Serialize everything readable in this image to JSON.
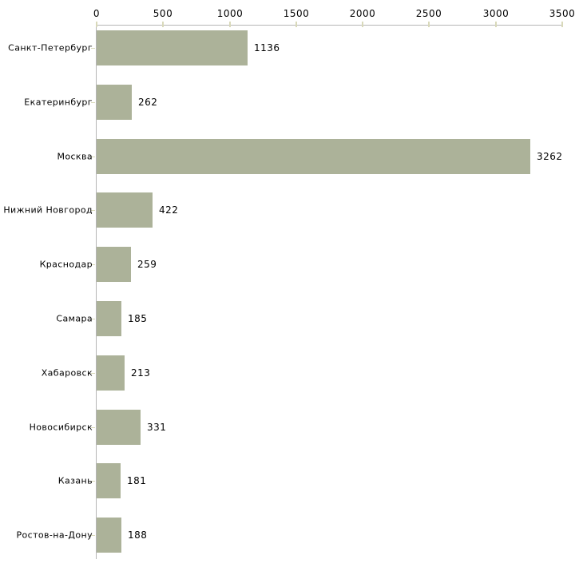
{
  "chart_data": {
    "type": "bar",
    "orientation": "horizontal",
    "title": "",
    "xlabel": "",
    "ylabel": "",
    "categories": [
      "Санкт-Петербург",
      "Екатеринбург",
      "Москва",
      "Нижний Новгород",
      "Краснодар",
      "Самара",
      "Хабаровск",
      "Новосибирск",
      "Казань",
      "Ростов-на-Дону"
    ],
    "values": [
      1136,
      262,
      3262,
      422,
      259,
      185,
      213,
      331,
      181,
      188
    ],
    "value_labels": [
      "1136",
      "262",
      "3262",
      "422",
      "259",
      "185",
      "213",
      "331",
      "181",
      "188"
    ],
    "xlim": [
      0,
      3500
    ],
    "x_ticks": [
      0,
      500,
      1000,
      1500,
      2000,
      2500,
      3000,
      3500
    ],
    "x_tick_labels": [
      "0",
      "500",
      "1000",
      "1500",
      "2000",
      "2500",
      "3000",
      "3500"
    ],
    "grid": false,
    "legend": false,
    "axis_position": "top",
    "colors": {
      "bar_fill": "#acb299",
      "axis_line": "#b5b5b5",
      "tick_mark": "#d9d9ba",
      "label_text": "#000000",
      "background": "#ffffff"
    }
  }
}
